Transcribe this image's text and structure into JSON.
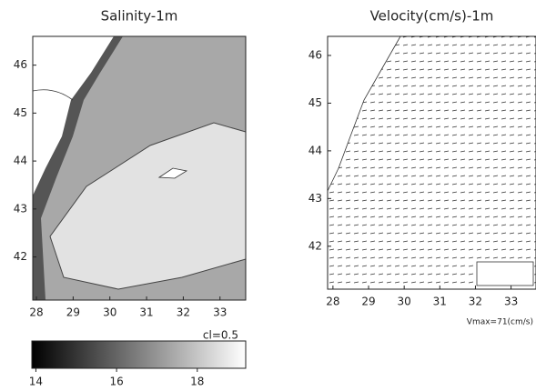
{
  "panels": [
    {
      "title": "Salinity-1m",
      "xticks": [
        28,
        29,
        30,
        31,
        32,
        33
      ],
      "yticks": [
        42,
        43,
        44,
        45,
        46
      ],
      "xlim": [
        27.9,
        33.7
      ],
      "ylim": [
        41.1,
        46.6
      ],
      "note": "cl=0.5"
    },
    {
      "title": "Velocity(cm/s)-1m",
      "xticks": [
        28,
        29,
        30,
        31,
        32,
        33
      ],
      "yticks": [
        42,
        43,
        44,
        45,
        46
      ],
      "xlim": [
        27.85,
        33.7
      ],
      "ylim": [
        41.1,
        46.4
      ],
      "note": "Vmax=71(cm/s)"
    }
  ],
  "colorbar": {
    "ticks": [
      14,
      16,
      18
    ],
    "lim": [
      13.9,
      19.2
    ]
  }
}
